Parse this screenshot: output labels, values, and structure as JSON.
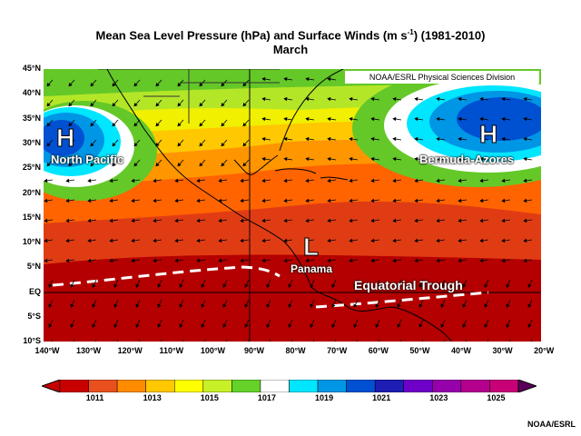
{
  "title_line1": "Mean Sea Level Pressure (hPa) and Surface Winds (m s",
  "title_sup": "-1",
  "title_line1_end": ") (1981-2010)",
  "title_line2": "March",
  "credit_top": "NOAA/ESRL Physical Sciences Division",
  "credit_bottom": "NOAA/ESRL",
  "lat_labels": [
    "45°N",
    "40°N",
    "35°N",
    "30°N",
    "25°N",
    "20°N",
    "15°N",
    "10°N",
    "5°N",
    "EQ",
    "5°S",
    "10°S"
  ],
  "lon_labels": [
    "140°W",
    "130°W",
    "120°W",
    "110°W",
    "100°W",
    "90°W",
    "80°W",
    "70°W",
    "60°W",
    "50°W",
    "40°W",
    "30°W",
    "20°W"
  ],
  "labels": {
    "north_pacific": "North Pacific",
    "bermuda": "Bermuda-Azores",
    "panama": "Panama",
    "trough": "Equatorial Trough",
    "high_symbol": "H",
    "low_symbol": "L"
  },
  "colorbar": {
    "labels": [
      "1011",
      "1013",
      "1015",
      "1017",
      "1019",
      "1021",
      "1023",
      "1025"
    ],
    "colors": [
      "#c80000",
      "#e8501e",
      "#ff8c00",
      "#ffc800",
      "#ffff00",
      "#c8f028",
      "#64d228",
      "#ffffff",
      "#00e6ff",
      "#0096e6",
      "#0050d2",
      "#1e1eb4",
      "#6e00c8",
      "#9600aa",
      "#b4008c",
      "#c80078"
    ]
  }
}
